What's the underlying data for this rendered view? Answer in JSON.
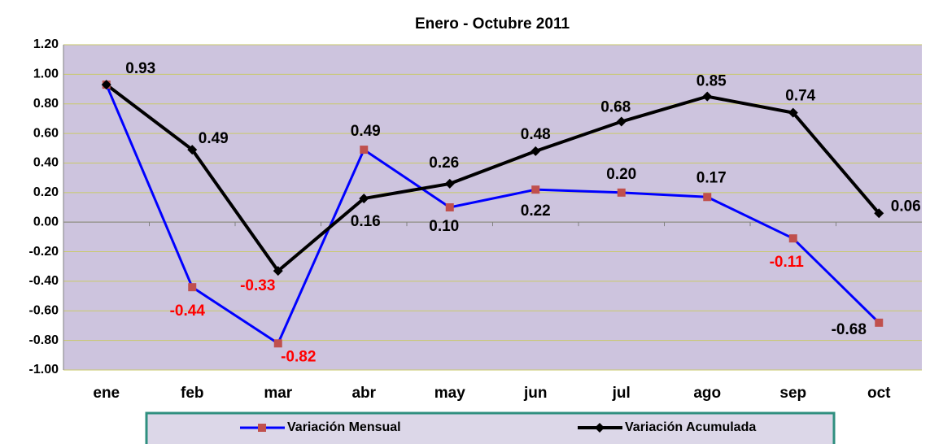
{
  "chart_data": {
    "type": "line",
    "title": "Enero - Octubre 2011",
    "categories": [
      "ene",
      "feb",
      "mar",
      "abr",
      "may",
      "jun",
      "jul",
      "ago",
      "sep",
      "oct"
    ],
    "series": [
      {
        "name": "Variación Mensual",
        "color": "#0000ff",
        "marker_color": "#c0504d",
        "values": [
          0.93,
          -0.44,
          -0.82,
          0.49,
          0.1,
          0.22,
          0.2,
          0.17,
          -0.11,
          -0.68
        ],
        "value_labels": [
          null,
          "-0.44",
          "-0.82",
          "0.49",
          "0.10",
          "0.22",
          "0.20",
          "0.17",
          "-0.11",
          "-0.68"
        ]
      },
      {
        "name": "Variación Acumulada",
        "color": "#000000",
        "marker_color": "#000000",
        "values": [
          0.93,
          0.49,
          -0.33,
          0.16,
          0.26,
          0.48,
          0.68,
          0.85,
          0.74,
          0.06
        ],
        "value_labels": [
          "0.93",
          "0.49",
          "-0.33",
          "0.16",
          "0.26",
          "0.48",
          "0.68",
          "0.85",
          "0.74",
          "0.06"
        ]
      }
    ],
    "ylim": [
      -1.0,
      1.2
    ],
    "yticks": [
      {
        "value": -1.0,
        "label": "-1.00"
      },
      {
        "value": -0.8,
        "label": "-0.80"
      },
      {
        "value": -0.6,
        "label": "-0.60"
      },
      {
        "value": -0.4,
        "label": "-0.40"
      },
      {
        "value": -0.2,
        "label": "-0.20"
      },
      {
        "value": 0,
        "label": "0.00"
      },
      {
        "value": 0.2,
        "label": "0.20"
      },
      {
        "value": 0.4,
        "label": "0.40"
      },
      {
        "value": 0.6,
        "label": "0.60"
      },
      {
        "value": 0.8,
        "label": "0.80"
      },
      {
        "value": 1.0,
        "label": "1.00"
      },
      {
        "value": 1.2,
        "label": "1.20"
      }
    ],
    "grid": true,
    "legend": "bottom"
  }
}
